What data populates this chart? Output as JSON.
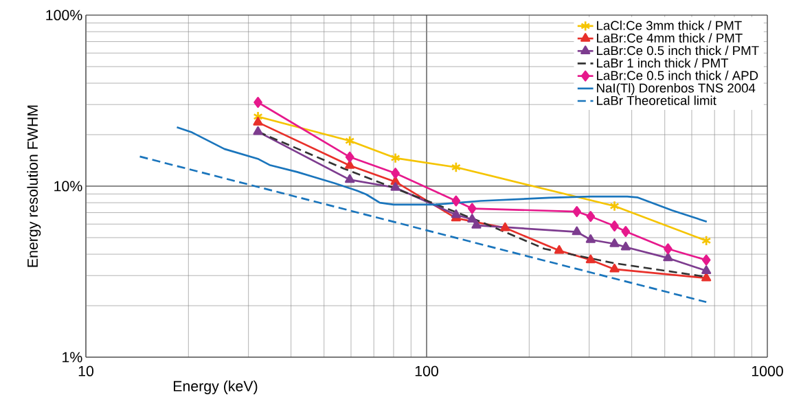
{
  "chart_data": {
    "type": "line",
    "log": "xy",
    "xlabel": "Energy (keV)",
    "ylabel": "Energy resolution  FWHM",
    "xlim": [
      10,
      1000
    ],
    "ylim": [
      1,
      100
    ],
    "xticks": [
      10,
      100,
      1000
    ],
    "yticks": [
      {
        "value": 1,
        "label": "1%"
      },
      {
        "value": 10,
        "label": "10%"
      },
      {
        "value": 100,
        "label": "100%"
      }
    ],
    "grid": true,
    "legend": "top right",
    "series": [
      {
        "name": "LaCl:Ce 3mm thick / PMT",
        "color": "#f5c400",
        "marker": "cross",
        "line_style": "solid",
        "x": [
          32,
          59.5,
          81,
          122,
          356,
          662
        ],
        "values": [
          25.5,
          18.4,
          14.6,
          12.9,
          7.65,
          4.8
        ]
      },
      {
        "name": "LaBr:Ce 4mm thick / PMT",
        "color": "#e8302a",
        "marker": "triangle",
        "line_style": "solid",
        "x": [
          32,
          59.5,
          81,
          122,
          170,
          245,
          303,
          356,
          662
        ],
        "values": [
          23.6,
          13.2,
          10.6,
          6.5,
          5.7,
          4.2,
          3.7,
          3.27,
          2.9
        ]
      },
      {
        "name": "LaBr:Ce 0.5 inch thick / PMT",
        "color": "#7d3c8f",
        "marker": "triangle",
        "line_style": "solid",
        "x": [
          32,
          59.5,
          81,
          122,
          136,
          140,
          276,
          303,
          356,
          384,
          511,
          662
        ],
        "values": [
          20.8,
          10.9,
          9.8,
          6.8,
          6.4,
          5.9,
          5.4,
          4.86,
          4.6,
          4.4,
          3.8,
          3.2
        ]
      },
      {
        "name": "LaBr 1 inch thick / PMT",
        "color": "#333333",
        "marker": "none",
        "line_style": "dashed",
        "x": [
          32,
          57,
          89,
          144,
          222,
          354,
          662
        ],
        "values": [
          20.8,
          12.7,
          9.0,
          6.2,
          4.3,
          3.55,
          2.95
        ]
      },
      {
        "name": "LaBr:Ce 0.5 inch thick / APD",
        "color": "#e6198c",
        "marker": "diamond",
        "line_style": "solid",
        "x": [
          32,
          59.5,
          81,
          122,
          136,
          276,
          303,
          356,
          384,
          511,
          662
        ],
        "values": [
          30.9,
          14.8,
          11.9,
          8.2,
          7.4,
          7.1,
          6.65,
          5.85,
          5.43,
          4.3,
          3.7
        ]
      },
      {
        "name": "NaI(Tl) Dorenbos TNS 2004",
        "color": "#1a75bc",
        "marker": "none",
        "line_style": "solid",
        "x": [
          18.5,
          20.5,
          25.5,
          32.1,
          34.6,
          41.7,
          53.7,
          62.6,
          66.5,
          72.9,
          80,
          106,
          144,
          229,
          303,
          388,
          415,
          527,
          664
        ],
        "values": [
          22.1,
          20.6,
          16.5,
          14.4,
          13.3,
          12.1,
          10.4,
          9.4,
          8.95,
          8.0,
          7.8,
          7.8,
          8.2,
          8.55,
          8.7,
          8.7,
          8.6,
          7.2,
          6.2
        ]
      },
      {
        "name": "LaBr Theoretical limit",
        "color": "#1a75bc",
        "marker": "none",
        "line_style": "dashed",
        "x": [
          14.4,
          197,
          662
        ],
        "values": [
          14.9,
          3.9,
          2.1
        ]
      }
    ]
  }
}
